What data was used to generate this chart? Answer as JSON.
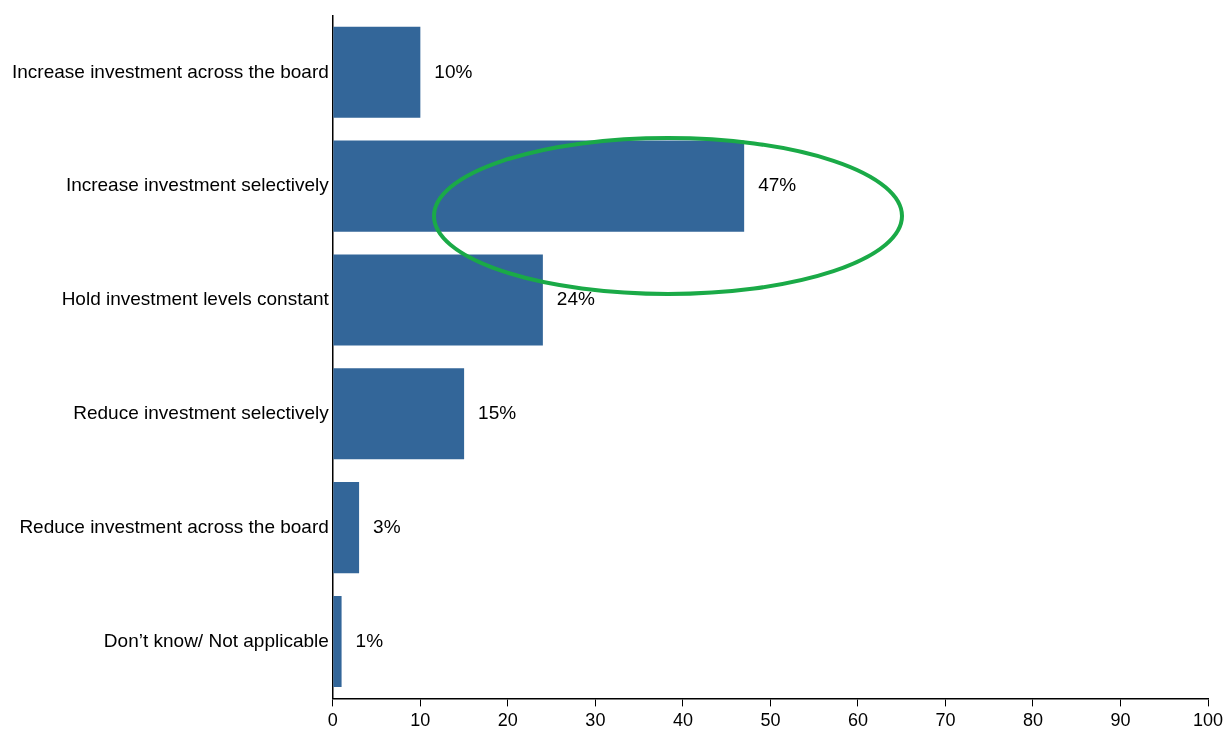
{
  "chart_data": {
    "type": "bar",
    "orientation": "horizontal",
    "categories": [
      "Increase investment across the board",
      "Increase investment selectively",
      "Hold investment levels constant",
      "Reduce investment selectively",
      "Reduce investment across the board",
      "Don’t know/ Not applicable"
    ],
    "values": [
      10,
      47,
      24,
      15,
      3,
      1
    ],
    "value_labels": [
      "10%",
      "47%",
      "24%",
      "15%",
      "3%",
      "1%"
    ],
    "color": "#336699",
    "xlim": [
      0,
      100
    ],
    "xticks": [
      0,
      10,
      20,
      30,
      40,
      50,
      60,
      70,
      80,
      90,
      100
    ],
    "grid": false,
    "legend": false
  }
}
